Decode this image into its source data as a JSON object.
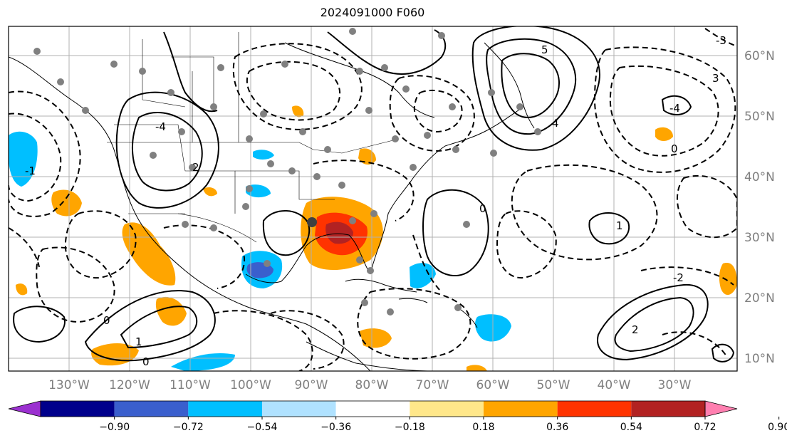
{
  "title": "2024091000 F060",
  "lat_labels": [
    "60°N",
    "50°N",
    "40°N",
    "30°N",
    "20°N",
    "10°N"
  ],
  "lon_labels": [
    "130°W",
    "120°W",
    "110°W",
    "100°W",
    "90°W",
    "80°W",
    "70°W",
    "60°W",
    "50°W",
    "40°W",
    "30°W"
  ],
  "colorbar": {
    "ticks": [
      "−0.90",
      "−0.72",
      "−0.54",
      "−0.36",
      "−0.18",
      "0.18",
      "0.36",
      "0.54",
      "0.72",
      "0.90"
    ],
    "colors": [
      "#9b30d0",
      "#00008b",
      "#3a5fcd",
      "#00bfff",
      "#b0e2ff",
      "#ffffff",
      "#ffe78a",
      "#ffa500",
      "#ff3300",
      "#b22222",
      "#ff7fb0"
    ]
  },
  "contour_labels": [
    "5",
    "4",
    "-4",
    "3",
    "2",
    "1",
    "0",
    "-1",
    "-2",
    "-3"
  ]
}
